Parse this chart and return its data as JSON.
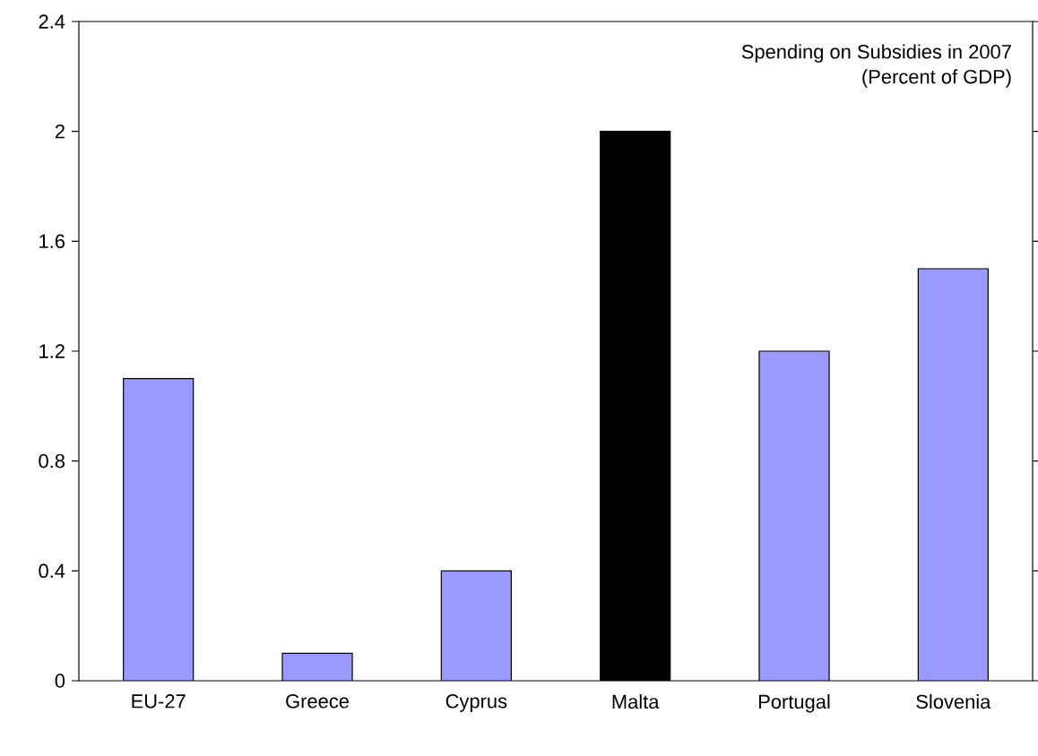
{
  "chart_data": {
    "type": "bar",
    "title": "Spending on Subsidies in 2007",
    "subtitle": "(Percent of GDP)",
    "categories": [
      "EU-27",
      "Greece",
      "Cyprus",
      "Malta",
      "Portugal",
      "Slovenia"
    ],
    "values": [
      1.1,
      0.1,
      0.4,
      2.0,
      1.2,
      1.5
    ],
    "colors": [
      "#9999ff",
      "#9999ff",
      "#9999ff",
      "#000000",
      "#9999ff",
      "#9999ff"
    ],
    "ylim": [
      0,
      2.4
    ],
    "yticks": [
      0,
      0.4,
      0.8,
      1.2,
      1.6,
      2,
      2.4
    ],
    "grid": false
  }
}
